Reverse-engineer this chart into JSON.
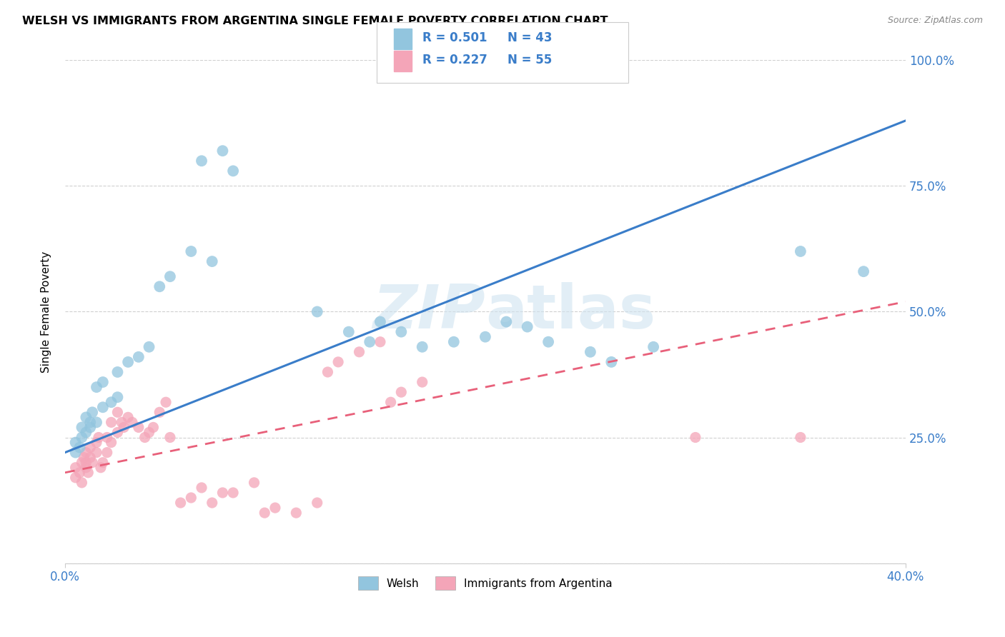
{
  "title": "WELSH VS IMMIGRANTS FROM ARGENTINA SINGLE FEMALE POVERTY CORRELATION CHART",
  "source": "Source: ZipAtlas.com",
  "ylabel": "Single Female Poverty",
  "xmin": 0.0,
  "xmax": 0.4,
  "ymin": 0.0,
  "ymax": 1.0,
  "welsh_color": "#92c5de",
  "argentina_color": "#f4a5b8",
  "welsh_line_color": "#3a7dc9",
  "argentina_line_color": "#e8607a",
  "watermark": "ZIPatlas",
  "legend_R_welsh": "0.501",
  "legend_N_welsh": "43",
  "legend_R_arg": "0.227",
  "legend_N_arg": "55",
  "welsh_line_x0": 0.0,
  "welsh_line_y0": 0.22,
  "welsh_line_x1": 0.4,
  "welsh_line_y1": 0.88,
  "arg_line_x0": 0.0,
  "arg_line_y0": 0.18,
  "arg_line_x1": 0.4,
  "arg_line_y1": 0.52,
  "welsh_scatter_x": [
    0.005,
    0.008,
    0.01,
    0.012,
    0.015,
    0.005,
    0.007,
    0.01,
    0.013,
    0.018,
    0.022,
    0.025,
    0.008,
    0.012,
    0.015,
    0.018,
    0.025,
    0.03,
    0.035,
    0.04,
    0.045,
    0.05,
    0.06,
    0.07,
    0.08,
    0.065,
    0.075,
    0.12,
    0.135,
    0.15,
    0.145,
    0.16,
    0.17,
    0.185,
    0.2,
    0.21,
    0.22,
    0.23,
    0.25,
    0.26,
    0.28,
    0.35,
    0.38
  ],
  "welsh_scatter_y": [
    0.24,
    0.25,
    0.26,
    0.27,
    0.28,
    0.22,
    0.23,
    0.29,
    0.3,
    0.31,
    0.32,
    0.33,
    0.27,
    0.28,
    0.35,
    0.36,
    0.38,
    0.4,
    0.41,
    0.43,
    0.55,
    0.57,
    0.62,
    0.6,
    0.78,
    0.8,
    0.82,
    0.5,
    0.46,
    0.48,
    0.44,
    0.46,
    0.43,
    0.44,
    0.45,
    0.48,
    0.47,
    0.44,
    0.42,
    0.4,
    0.43,
    0.62,
    0.58
  ],
  "argentina_scatter_x": [
    0.005,
    0.005,
    0.007,
    0.008,
    0.008,
    0.009,
    0.01,
    0.01,
    0.01,
    0.011,
    0.012,
    0.012,
    0.013,
    0.015,
    0.015,
    0.016,
    0.017,
    0.018,
    0.02,
    0.02,
    0.022,
    0.022,
    0.025,
    0.025,
    0.027,
    0.028,
    0.03,
    0.032,
    0.035,
    0.038,
    0.04,
    0.042,
    0.045,
    0.048,
    0.05,
    0.055,
    0.06,
    0.065,
    0.07,
    0.075,
    0.08,
    0.09,
    0.095,
    0.1,
    0.11,
    0.12,
    0.125,
    0.13,
    0.14,
    0.15,
    0.155,
    0.16,
    0.17,
    0.3,
    0.35
  ],
  "argentina_scatter_y": [
    0.19,
    0.17,
    0.18,
    0.16,
    0.2,
    0.21,
    0.19,
    0.22,
    0.2,
    0.18,
    0.21,
    0.23,
    0.2,
    0.24,
    0.22,
    0.25,
    0.19,
    0.2,
    0.22,
    0.25,
    0.24,
    0.28,
    0.26,
    0.3,
    0.28,
    0.27,
    0.29,
    0.28,
    0.27,
    0.25,
    0.26,
    0.27,
    0.3,
    0.32,
    0.25,
    0.12,
    0.13,
    0.15,
    0.12,
    0.14,
    0.14,
    0.16,
    0.1,
    0.11,
    0.1,
    0.12,
    0.38,
    0.4,
    0.42,
    0.44,
    0.32,
    0.34,
    0.36,
    0.25,
    0.25
  ],
  "background_color": "#ffffff",
  "grid_color": "#d0d0d0",
  "right_tick_color": "#3a7dc9",
  "bottom_tick_color": "#3a7dc9"
}
